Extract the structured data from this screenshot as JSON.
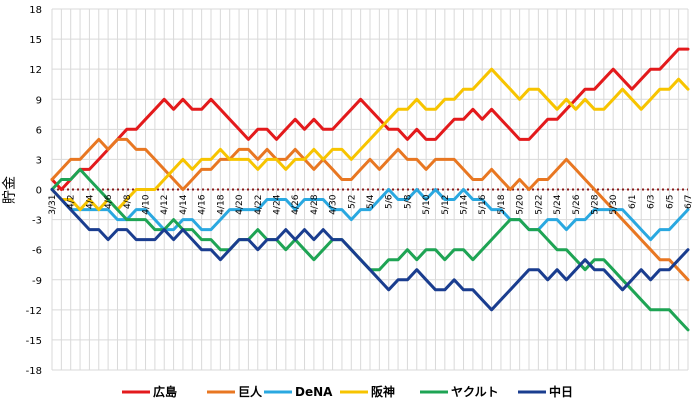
{
  "chart_data": {
    "type": "line",
    "title": "",
    "xlabel": "",
    "ylabel": "貯金",
    "ylim": [
      -18,
      18
    ],
    "yticks": [
      18,
      15,
      12,
      9,
      6,
      3,
      0,
      -3,
      -6,
      -9,
      -12,
      -15,
      -18
    ],
    "grid": true,
    "zero_line": "dotted",
    "legend_position": "bottom",
    "x_categories": [
      "3/31",
      "4/1",
      "4/2",
      "4/3",
      "4/4",
      "4/5",
      "4/6",
      "4/7",
      "4/8",
      "4/9",
      "4/10",
      "4/11",
      "4/12",
      "4/13",
      "4/14",
      "4/15",
      "4/16",
      "4/17",
      "4/18",
      "4/19",
      "4/20",
      "4/21",
      "4/22",
      "4/23",
      "4/24",
      "4/25",
      "4/26",
      "4/27",
      "4/28",
      "4/29",
      "4/30",
      "5/1",
      "5/2",
      "5/3",
      "5/4",
      "5/5",
      "5/6",
      "5/7",
      "5/8",
      "5/9",
      "5/10",
      "5/11",
      "5/12",
      "5/13",
      "5/14",
      "5/15",
      "5/16",
      "5/17",
      "5/18",
      "5/19",
      "5/20",
      "5/21",
      "5/22",
      "5/23",
      "5/24",
      "5/25",
      "5/26",
      "5/27",
      "5/28",
      "5/29",
      "5/30",
      "5/31",
      "6/1",
      "6/2",
      "6/3",
      "6/4",
      "6/5",
      "6/6",
      "6/7"
    ],
    "x_tick_labels": [
      "3/31",
      "4/2",
      "4/4",
      "4/6",
      "4/8",
      "4/10",
      "4/12",
      "4/14",
      "4/16",
      "4/18",
      "4/20",
      "4/22",
      "4/24",
      "4/26",
      "4/28",
      "4/30",
      "5/2",
      "5/4",
      "5/6",
      "5/8",
      "5/10",
      "5/12",
      "5/14",
      "5/16",
      "5/18",
      "5/20",
      "5/22",
      "5/24",
      "5/26",
      "5/28",
      "5/30",
      "6/1",
      "6/3",
      "6/5",
      "6/7"
    ],
    "series": [
      {
        "name": "広島",
        "color": "#e31a1c",
        "values": [
          1,
          0,
          1,
          2,
          2,
          3,
          4,
          5,
          6,
          6,
          7,
          8,
          9,
          8,
          9,
          8,
          8,
          9,
          8,
          7,
          6,
          5,
          6,
          6,
          5,
          6,
          7,
          6,
          7,
          6,
          6,
          7,
          8,
          9,
          8,
          7,
          6,
          6,
          5,
          6,
          5,
          5,
          6,
          7,
          7,
          8,
          7,
          8,
          7,
          6,
          5,
          5,
          6,
          7,
          7,
          8,
          9,
          10,
          10,
          11,
          12,
          11,
          10,
          11,
          12,
          12,
          13,
          14,
          14
        ]
      },
      {
        "name": "巨人",
        "color": "#e87722",
        "values": [
          1,
          2,
          3,
          3,
          4,
          5,
          4,
          5,
          5,
          4,
          4,
          3,
          2,
          1,
          0,
          1,
          2,
          2,
          3,
          3,
          4,
          4,
          3,
          4,
          3,
          3,
          4,
          3,
          2,
          3,
          2,
          1,
          1,
          2,
          3,
          2,
          3,
          4,
          3,
          3,
          2,
          3,
          3,
          3,
          2,
          1,
          1,
          2,
          1,
          0,
          1,
          0,
          1,
          1,
          2,
          3,
          2,
          1,
          0,
          -1,
          -2,
          -3,
          -4,
          -5,
          -6,
          -7,
          -7,
          -8,
          -9
        ]
      },
      {
        "name": "DeNA",
        "color": "#2aa8e0",
        "values": [
          0,
          -1,
          -2,
          -2,
          -2,
          -2,
          -2,
          -3,
          -3,
          -2,
          -2,
          -3,
          -4,
          -4,
          -3,
          -3,
          -4,
          -4,
          -3,
          -2,
          -2,
          -2,
          -2,
          -1,
          -1,
          -1,
          -2,
          -1,
          -1,
          -1,
          -2,
          -2,
          -3,
          -2,
          -2,
          -1,
          0,
          -1,
          -1,
          0,
          -1,
          0,
          -1,
          -1,
          0,
          -1,
          -1,
          -2,
          -2,
          -3,
          -3,
          -4,
          -4,
          -3,
          -3,
          -4,
          -3,
          -3,
          -2,
          -2,
          -2,
          -2,
          -3,
          -4,
          -5,
          -4,
          -4,
          -3,
          -2
        ]
      },
      {
        "name": "阪神",
        "color": "#f7c400",
        "values": [
          0,
          -1,
          -1,
          -2,
          -1,
          -2,
          -1,
          -2,
          -1,
          0,
          0,
          0,
          1,
          2,
          3,
          2,
          3,
          3,
          4,
          3,
          3,
          3,
          2,
          3,
          3,
          2,
          3,
          3,
          4,
          3,
          4,
          4,
          3,
          4,
          5,
          6,
          7,
          8,
          8,
          9,
          8,
          8,
          9,
          9,
          10,
          10,
          11,
          12,
          11,
          10,
          9,
          10,
          10,
          9,
          8,
          9,
          8,
          9,
          8,
          8,
          9,
          10,
          9,
          8,
          9,
          10,
          10,
          11,
          10
        ]
      },
      {
        "name": "ヤクルト",
        "color": "#1ea454",
        "values": [
          0,
          1,
          1,
          2,
          1,
          0,
          -1,
          -2,
          -3,
          -3,
          -3,
          -4,
          -4,
          -3,
          -4,
          -4,
          -5,
          -5,
          -6,
          -6,
          -5,
          -5,
          -4,
          -5,
          -5,
          -6,
          -5,
          -6,
          -7,
          -6,
          -5,
          -5,
          -6,
          -7,
          -8,
          -8,
          -7,
          -7,
          -6,
          -7,
          -6,
          -6,
          -7,
          -6,
          -6,
          -7,
          -6,
          -5,
          -4,
          -3,
          -3,
          -4,
          -4,
          -5,
          -6,
          -6,
          -7,
          -8,
          -7,
          -7,
          -8,
          -9,
          -10,
          -11,
          -12,
          -12,
          -12,
          -13,
          -14
        ]
      },
      {
        "name": "中日",
        "color": "#1a3d8f",
        "values": [
          0,
          -1,
          -2,
          -3,
          -4,
          -4,
          -5,
          -4,
          -4,
          -5,
          -5,
          -5,
          -4,
          -5,
          -4,
          -5,
          -6,
          -6,
          -7,
          -6,
          -5,
          -5,
          -6,
          -5,
          -5,
          -4,
          -5,
          -4,
          -5,
          -4,
          -5,
          -5,
          -6,
          -7,
          -8,
          -9,
          -10,
          -9,
          -9,
          -8,
          -9,
          -10,
          -10,
          -9,
          -10,
          -10,
          -11,
          -12,
          -11,
          -10,
          -9,
          -8,
          -8,
          -9,
          -8,
          -9,
          -8,
          -7,
          -8,
          -8,
          -9,
          -10,
          -9,
          -8,
          -9,
          -8,
          -8,
          -7,
          -6
        ]
      }
    ]
  }
}
